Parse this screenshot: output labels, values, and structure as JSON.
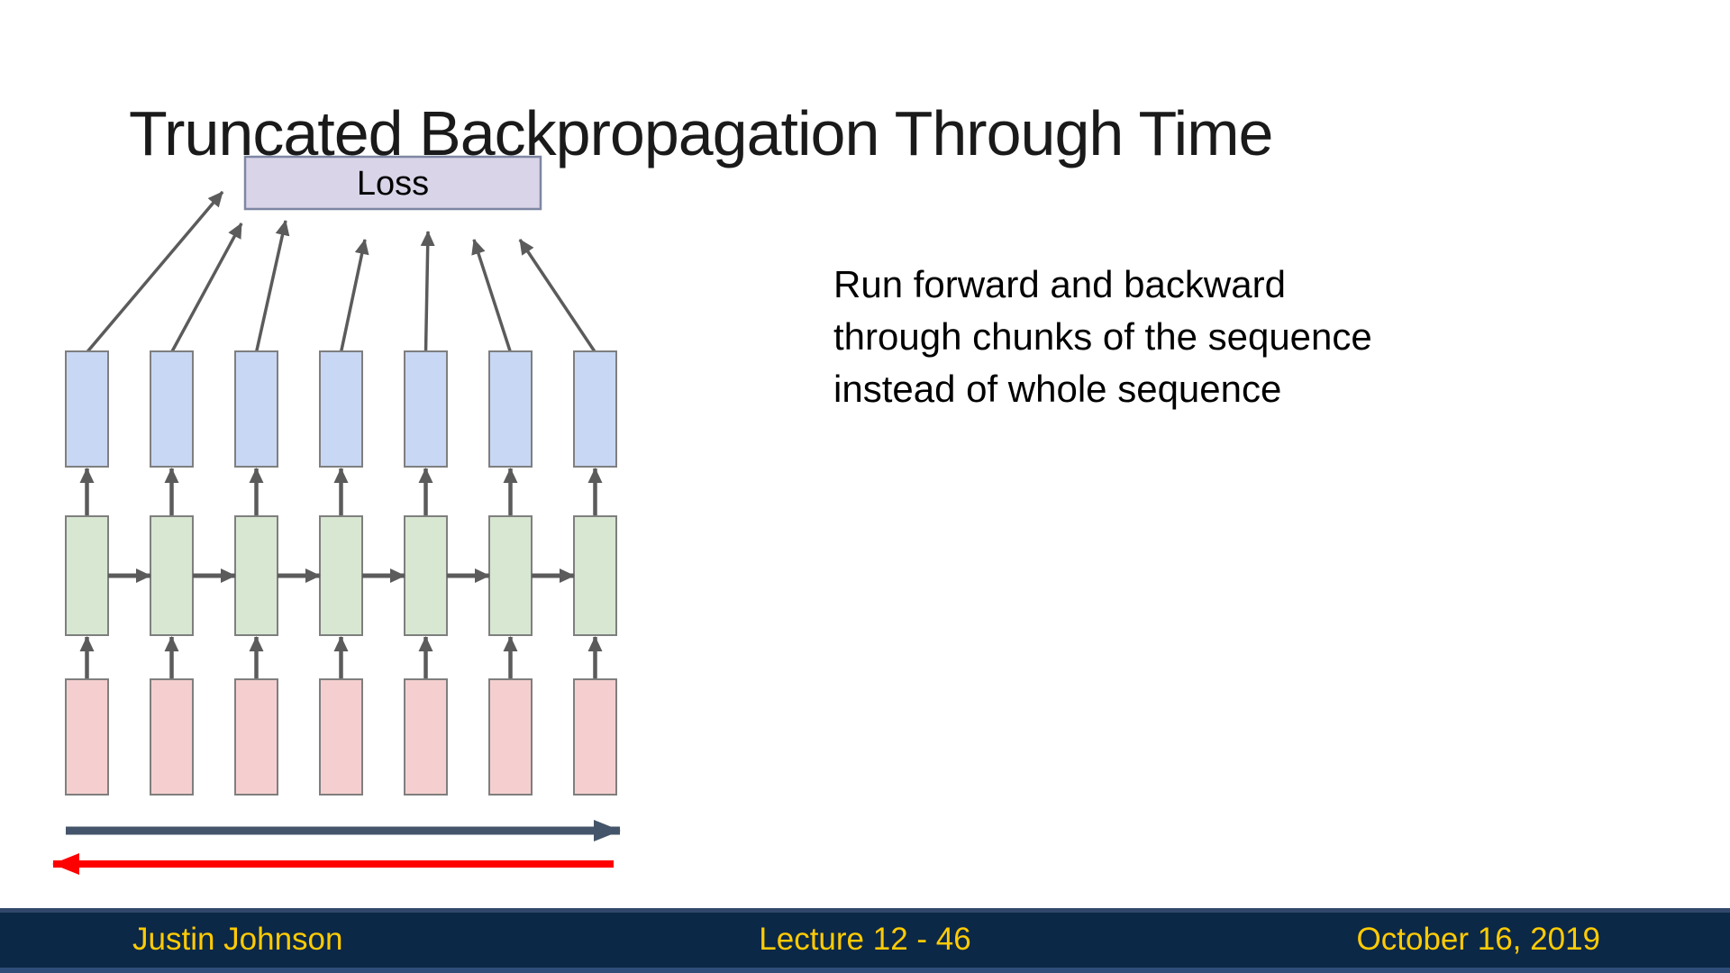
{
  "slide": {
    "title": "Truncated Backpropagation Through Time",
    "note": "Run forward and backward\nthrough chunks of the sequence\ninstead of whole sequence"
  },
  "diagram": {
    "loss_label": "Loss",
    "timesteps": 7,
    "layers": [
      {
        "name": "input",
        "fill": "#F5CFCF"
      },
      {
        "name": "hidden",
        "fill": "#D7E7D2"
      },
      {
        "name": "output",
        "fill": "#C8D7F3"
      }
    ],
    "loss_fill": "#D9D4E8",
    "loss_border": "#7E87A3",
    "box_border": "#7F7F7F",
    "arrow_color": "#5B5B5B",
    "forward_arrow_color": "#44546A",
    "backward_arrow_color": "#FF0000"
  },
  "footer": {
    "author": "Justin Johnson",
    "lecture": "Lecture 12 - 46",
    "date": "October 16, 2019",
    "bg_color": "#0C2847",
    "text_color": "#FFCB05"
  }
}
